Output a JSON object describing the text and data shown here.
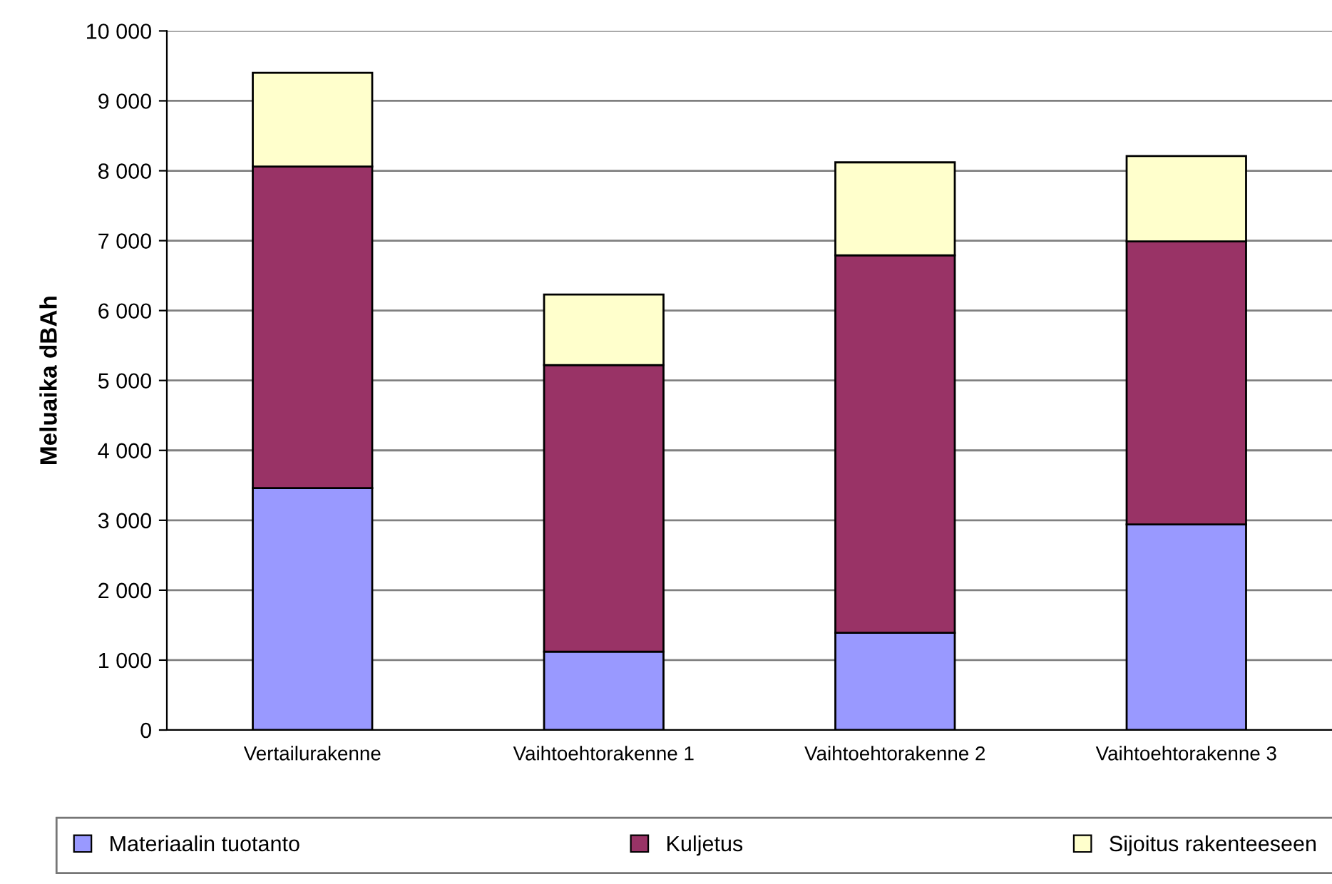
{
  "chart_data": {
    "type": "bar",
    "stacked": true,
    "ylabel": "Meluaika dBAh",
    "categories": [
      "Vertailurakenne",
      "Vaihtoehtorakenne 1",
      "Vaihtoehtorakenne 2",
      "Vaihtoehtorakenne 3"
    ],
    "series": [
      {
        "name": "Materiaalin tuotanto",
        "color": "#9999ff",
        "values": [
          3460,
          1120,
          1390,
          2940
        ]
      },
      {
        "name": "Kuljetus",
        "color": "#993366",
        "values": [
          4600,
          4100,
          5400,
          4050
        ]
      },
      {
        "name": "Sijoitus rakenteeseen",
        "color": "#ffffcc",
        "values": [
          1340,
          1010,
          1330,
          1220
        ]
      }
    ],
    "ylim": [
      0,
      10000
    ],
    "yticks": [
      0,
      {
        "value": 1000,
        "label": "1 000"
      },
      {
        "value": 2000,
        "label": "2 000"
      },
      {
        "value": 3000,
        "label": "3 000"
      },
      {
        "value": 4000,
        "label": "4 000"
      },
      {
        "value": 5000,
        "label": "5 000"
      },
      {
        "value": 6000,
        "label": "6 000"
      },
      {
        "value": 7000,
        "label": "7 000"
      },
      {
        "value": 8000,
        "label": "8 000"
      },
      {
        "value": 9000,
        "label": "9 000"
      },
      {
        "value": 10000,
        "label": "10 000"
      }
    ],
    "grid": "y",
    "legend": "bottom"
  }
}
